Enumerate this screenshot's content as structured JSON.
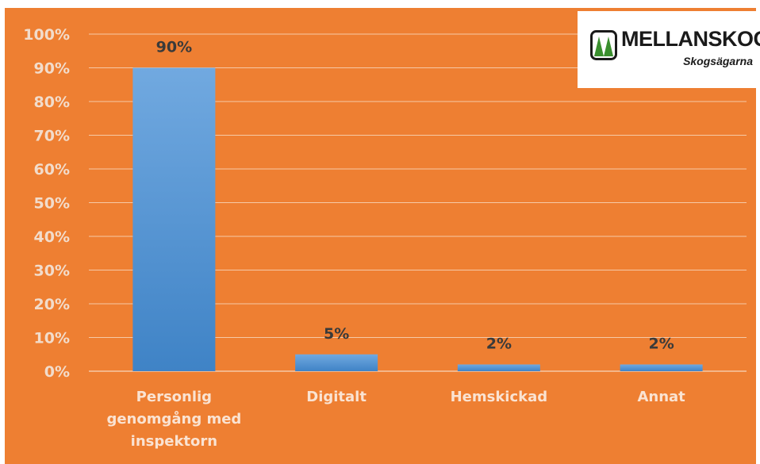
{
  "chart_data": {
    "type": "bar",
    "categories": [
      [
        "Personlig",
        "genomgång med",
        "inspektorn"
      ],
      [
        "Digitalt"
      ],
      [
        "Hemskickad"
      ],
      [
        "Annat"
      ]
    ],
    "values": [
      90,
      5,
      2,
      2
    ],
    "data_labels": [
      "90%",
      "5%",
      "2%",
      "2%"
    ],
    "ylim": [
      0,
      100
    ],
    "yticks": [
      0,
      10,
      20,
      30,
      40,
      50,
      60,
      70,
      80,
      90,
      100
    ],
    "ytick_labels": [
      "0%",
      "10%",
      "20%",
      "30%",
      "40%",
      "50%",
      "60%",
      "70%",
      "80%",
      "90%",
      "100%"
    ],
    "grid": true,
    "legend": "none",
    "colors": {
      "background": "#EE7F32",
      "bar_top": "#71A9E0",
      "bar_bottom": "#3F83C6",
      "gridline": "#F6C9A6",
      "axis_text": "#F2DCCB",
      "data_label": "#3A3A3A"
    }
  },
  "logo": {
    "name": "MELLANSKOG",
    "subtitle": "Skogsägarna",
    "icon": "tree-mark-icon",
    "colors": {
      "frame": "#1a1a1a",
      "trees": "#3A8F2E"
    }
  }
}
